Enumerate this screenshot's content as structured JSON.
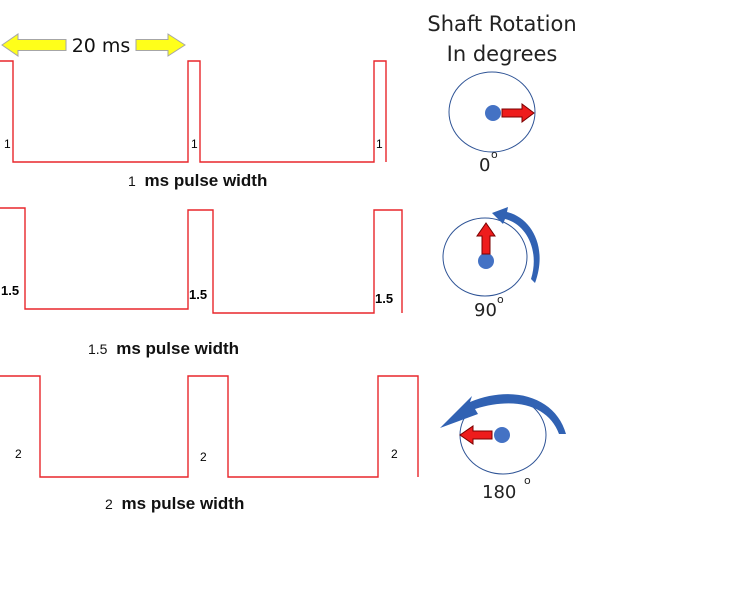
{
  "heading": {
    "line1": "Shaft Rotation",
    "line2": "In degrees"
  },
  "period_label": "20 ms",
  "colors": {
    "pulse": "#e8262b",
    "arrow_yellow": "#ffff1a",
    "arrow_red": "#ee1c1c",
    "shaft_blue": "#4472c4",
    "circle_outline": "#2f5496",
    "rotation_arrow": "#3162b3"
  },
  "rows": [
    {
      "pulse_labels": [
        "1",
        "1",
        "1"
      ],
      "caption_number": "1",
      "caption_text": "ms pulse width",
      "angle": "0",
      "degree_mark": "o"
    },
    {
      "pulse_labels": [
        "1.5",
        "1.5",
        "1.5"
      ],
      "caption_number": "1.5",
      "caption_text": "ms pulse width",
      "angle": "90",
      "degree_mark": "o"
    },
    {
      "pulse_labels": [
        "2",
        "2",
        "2"
      ],
      "caption_number": "2",
      "caption_text": "ms pulse width",
      "angle": "180",
      "degree_mark": "o"
    }
  ]
}
